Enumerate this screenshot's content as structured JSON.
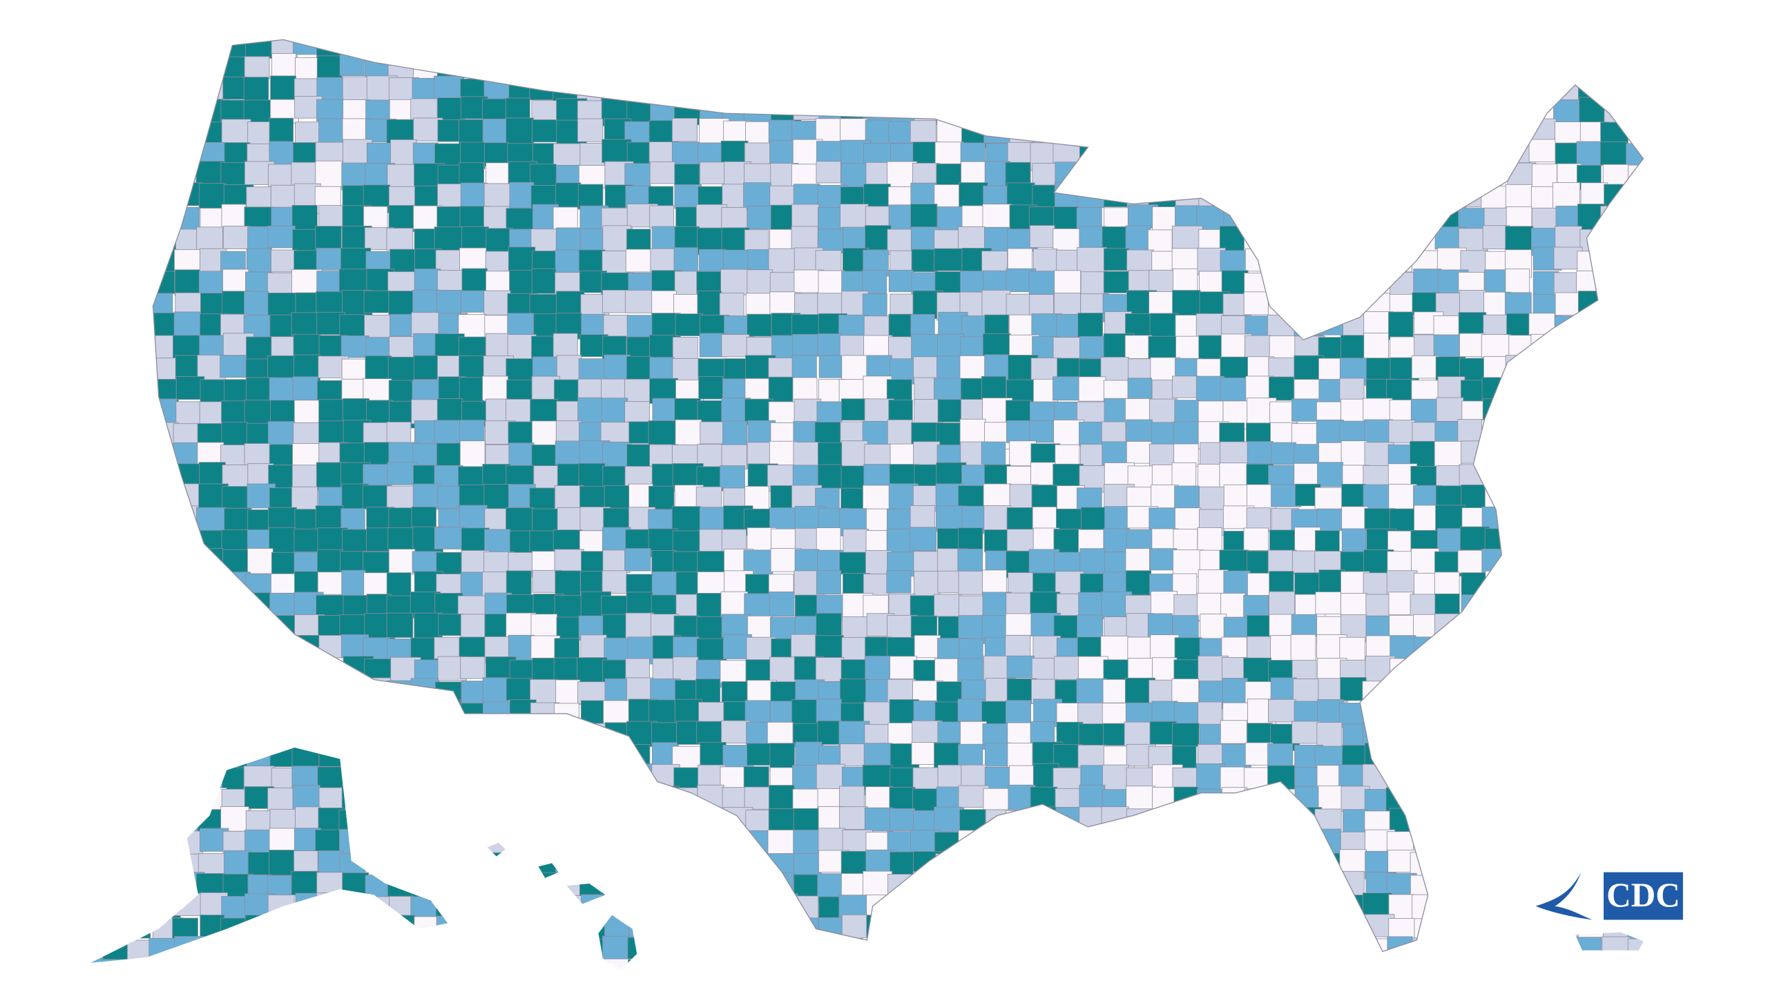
{
  "logo": {
    "text": "CDC"
  }
}
